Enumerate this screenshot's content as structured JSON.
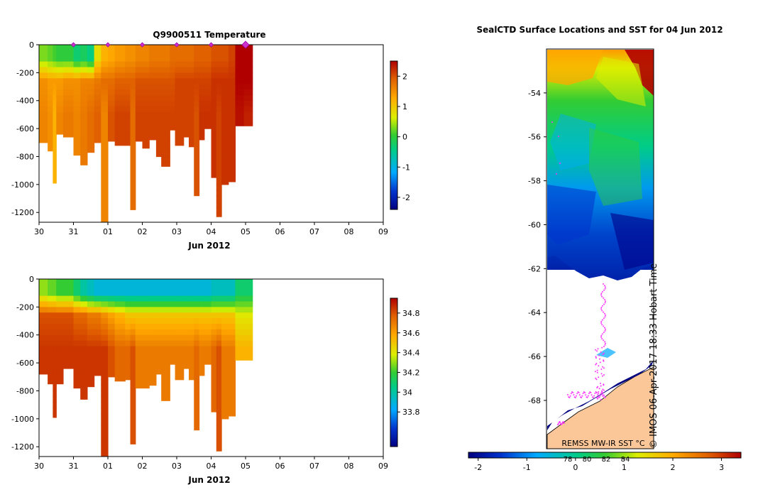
{
  "chart_data": [
    {
      "type": "heatmap",
      "title": "Q9900511  Temperature",
      "xlabel": "Jun 2012",
      "ylabel": "",
      "x_ticks": [
        "30",
        "31",
        "01",
        "02",
        "03",
        "04",
        "05",
        "06",
        "07",
        "08",
        "09"
      ],
      "y_ticks": [
        0,
        -200,
        -400,
        -600,
        -800,
        -1000,
        -1200
      ],
      "ylim": [
        -1270,
        0
      ],
      "colorbar": {
        "min": -2.4,
        "max": 2.5,
        "ticks": [
          "2",
          "1",
          "0",
          "-1",
          "-2"
        ],
        "tick_values": [
          2,
          1,
          0,
          -1,
          -2
        ]
      },
      "profiles": [
        {
          "day": 0.0,
          "max_depth": 700,
          "surface": 0.3,
          "upper": 1.5,
          "deep": 1.6
        },
        {
          "day": 0.25,
          "max_depth": 760,
          "surface": 0.2,
          "upper": 1.4,
          "deep": 1.5
        },
        {
          "day": 0.4,
          "max_depth": 990,
          "surface": 0.1,
          "upper": 1.4,
          "deep": 1.2
        },
        {
          "day": 0.5,
          "max_depth": 640,
          "surface": 0.0,
          "upper": 1.4,
          "deep": 1.6
        },
        {
          "day": 0.7,
          "max_depth": 660,
          "surface": 0.0,
          "upper": 1.5,
          "deep": 1.7
        },
        {
          "day": 1.0,
          "max_depth": 790,
          "surface": -0.3,
          "upper": 1.5,
          "deep": 1.6
        },
        {
          "day": 1.2,
          "max_depth": 860,
          "surface": -0.2,
          "upper": 1.6,
          "deep": 1.7
        },
        {
          "day": 1.4,
          "max_depth": 770,
          "surface": -0.4,
          "upper": 1.6,
          "deep": 1.8
        },
        {
          "day": 1.6,
          "max_depth": 700,
          "surface": 0.8,
          "upper": 1.7,
          "deep": 1.9
        },
        {
          "day": 1.8,
          "max_depth": 1270,
          "surface": 1.2,
          "upper": 1.8,
          "deep": 1.6
        },
        {
          "day": 2.0,
          "max_depth": 690,
          "surface": 1.3,
          "upper": 1.8,
          "deep": 2.0
        },
        {
          "day": 2.2,
          "max_depth": 720,
          "surface": 1.4,
          "upper": 1.9,
          "deep": 2.1
        },
        {
          "day": 2.5,
          "max_depth": 720,
          "surface": 1.5,
          "upper": 1.9,
          "deep": 2.1
        },
        {
          "day": 2.65,
          "max_depth": 1180,
          "surface": 1.5,
          "upper": 1.9,
          "deep": 1.8
        },
        {
          "day": 2.8,
          "max_depth": 690,
          "surface": 1.6,
          "upper": 2.0,
          "deep": 2.1
        },
        {
          "day": 3.0,
          "max_depth": 740,
          "surface": 1.6,
          "upper": 2.0,
          "deep": 2.1
        },
        {
          "day": 3.2,
          "max_depth": 680,
          "surface": 1.7,
          "upper": 2.0,
          "deep": 2.1
        },
        {
          "day": 3.4,
          "max_depth": 800,
          "surface": 1.7,
          "upper": 2.0,
          "deep": 2.1
        },
        {
          "day": 3.55,
          "max_depth": 870,
          "surface": 1.7,
          "upper": 2.0,
          "deep": 2.1
        },
        {
          "day": 3.8,
          "max_depth": 610,
          "surface": 1.8,
          "upper": 2.0,
          "deep": 2.1
        },
        {
          "day": 3.95,
          "max_depth": 720,
          "surface": 1.8,
          "upper": 2.1,
          "deep": 2.1
        },
        {
          "day": 4.2,
          "max_depth": 660,
          "surface": 1.8,
          "upper": 2.1,
          "deep": 2.1
        },
        {
          "day": 4.35,
          "max_depth": 730,
          "surface": 1.8,
          "upper": 2.1,
          "deep": 2.1
        },
        {
          "day": 4.5,
          "max_depth": 1080,
          "surface": 1.9,
          "upper": 2.1,
          "deep": 2.0
        },
        {
          "day": 4.65,
          "max_depth": 680,
          "surface": 1.9,
          "upper": 2.1,
          "deep": 2.2
        },
        {
          "day": 4.8,
          "max_depth": 600,
          "surface": 1.9,
          "upper": 2.1,
          "deep": 2.2
        },
        {
          "day": 5.0,
          "max_depth": 950,
          "surface": 2.0,
          "upper": 2.2,
          "deep": 2.2
        },
        {
          "day": 5.15,
          "max_depth": 1230,
          "surface": 2.0,
          "upper": 2.2,
          "deep": 2.1
        },
        {
          "day": 5.3,
          "max_depth": 1000,
          "surface": 2.0,
          "upper": 2.2,
          "deep": 2.2
        },
        {
          "day": 5.5,
          "max_depth": 980,
          "surface": 2.1,
          "upper": 2.2,
          "deep": 2.2
        },
        {
          "day": 5.7,
          "max_depth": 580,
          "surface": 2.5,
          "upper": 2.5,
          "deep": 2.4
        },
        {
          "day": 5.95,
          "max_depth": 580,
          "surface": 2.5,
          "upper": 2.5,
          "deep": 2.3
        }
      ],
      "last_day": 6.2,
      "surface_markers": [
        1.0,
        2.0,
        3.0,
        4.0,
        5.0,
        6.0
      ]
    },
    {
      "type": "heatmap",
      "title": "",
      "xlabel": "Jun 2012",
      "ylabel": "",
      "x_ticks": [
        "30",
        "31",
        "01",
        "02",
        "03",
        "04",
        "05",
        "06",
        "07",
        "08",
        "09"
      ],
      "y_ticks": [
        0,
        -200,
        -400,
        -600,
        -800,
        -1000,
        -1200
      ],
      "ylim": [
        -1270,
        0
      ],
      "colorbar": {
        "min": 33.45,
        "max": 34.95,
        "ticks": [
          "34.8",
          "34.6",
          "34.4",
          "34.2",
          "34",
          "33.8"
        ],
        "tick_values": [
          34.8,
          34.6,
          34.4,
          34.2,
          34.0,
          33.8
        ]
      },
      "profiles": [
        {
          "day": 0.0,
          "max_depth": 680,
          "surface": 34.3,
          "upper": 34.8,
          "deep": 34.85
        },
        {
          "day": 0.25,
          "max_depth": 750,
          "surface": 34.25,
          "upper": 34.8,
          "deep": 34.85
        },
        {
          "day": 0.4,
          "max_depth": 990,
          "surface": 34.25,
          "upper": 34.8,
          "deep": 34.85
        },
        {
          "day": 0.5,
          "max_depth": 750,
          "surface": 34.2,
          "upper": 34.8,
          "deep": 34.85
        },
        {
          "day": 0.7,
          "max_depth": 640,
          "surface": 34.2,
          "upper": 34.8,
          "deep": 34.85
        },
        {
          "day": 1.0,
          "max_depth": 780,
          "surface": 34.1,
          "upper": 34.75,
          "deep": 34.85
        },
        {
          "day": 1.2,
          "max_depth": 860,
          "surface": 34.0,
          "upper": 34.75,
          "deep": 34.85
        },
        {
          "day": 1.4,
          "max_depth": 770,
          "surface": 33.95,
          "upper": 34.7,
          "deep": 34.85
        },
        {
          "day": 1.6,
          "max_depth": 690,
          "surface": 33.9,
          "upper": 34.7,
          "deep": 34.85
        },
        {
          "day": 1.8,
          "max_depth": 1270,
          "surface": 33.9,
          "upper": 34.65,
          "deep": 34.85
        },
        {
          "day": 2.0,
          "max_depth": 700,
          "surface": 33.9,
          "upper": 34.6,
          "deep": 34.8
        },
        {
          "day": 2.2,
          "max_depth": 730,
          "surface": 33.9,
          "upper": 34.55,
          "deep": 34.75
        },
        {
          "day": 2.5,
          "max_depth": 720,
          "surface": 33.9,
          "upper": 34.5,
          "deep": 34.75
        },
        {
          "day": 2.65,
          "max_depth": 1180,
          "surface": 33.9,
          "upper": 34.5,
          "deep": 34.8
        },
        {
          "day": 2.8,
          "max_depth": 780,
          "surface": 33.9,
          "upper": 34.5,
          "deep": 34.7
        },
        {
          "day": 3.0,
          "max_depth": 780,
          "surface": 33.9,
          "upper": 34.5,
          "deep": 34.7
        },
        {
          "day": 3.2,
          "max_depth": 760,
          "surface": 33.9,
          "upper": 34.5,
          "deep": 34.7
        },
        {
          "day": 3.4,
          "max_depth": 680,
          "surface": 33.9,
          "upper": 34.5,
          "deep": 34.7
        },
        {
          "day": 3.55,
          "max_depth": 870,
          "surface": 33.9,
          "upper": 34.5,
          "deep": 34.7
        },
        {
          "day": 3.8,
          "max_depth": 610,
          "surface": 33.9,
          "upper": 34.5,
          "deep": 34.7
        },
        {
          "day": 3.95,
          "max_depth": 720,
          "surface": 33.9,
          "upper": 34.5,
          "deep": 34.7
        },
        {
          "day": 4.2,
          "max_depth": 640,
          "surface": 33.9,
          "upper": 34.5,
          "deep": 34.7
        },
        {
          "day": 4.35,
          "max_depth": 720,
          "surface": 33.9,
          "upper": 34.5,
          "deep": 34.7
        },
        {
          "day": 4.5,
          "max_depth": 1080,
          "surface": 33.9,
          "upper": 34.5,
          "deep": 34.75
        },
        {
          "day": 4.65,
          "max_depth": 690,
          "surface": 33.9,
          "upper": 34.5,
          "deep": 34.7
        },
        {
          "day": 4.8,
          "max_depth": 610,
          "surface": 33.9,
          "upper": 34.5,
          "deep": 34.7
        },
        {
          "day": 5.0,
          "max_depth": 950,
          "surface": 33.95,
          "upper": 34.5,
          "deep": 34.75
        },
        {
          "day": 5.15,
          "max_depth": 1230,
          "surface": 33.95,
          "upper": 34.5,
          "deep": 34.8
        },
        {
          "day": 5.3,
          "max_depth": 1000,
          "surface": 33.95,
          "upper": 34.5,
          "deep": 34.7
        },
        {
          "day": 5.5,
          "max_depth": 980,
          "surface": 33.95,
          "upper": 34.5,
          "deep": 34.7
        },
        {
          "day": 5.7,
          "max_depth": 580,
          "surface": 34.1,
          "upper": 34.4,
          "deep": 34.55
        },
        {
          "day": 5.95,
          "max_depth": 580,
          "surface": 34.1,
          "upper": 34.4,
          "deep": 34.55
        }
      ],
      "last_day": 6.2
    },
    {
      "type": "heatmap",
      "title": "SealCTD Surface Locations and SST for 04 Jun 2012",
      "y_ticks": [
        "-54",
        "-56",
        "-58",
        "-60",
        "-62",
        "-64",
        "-66",
        "-68"
      ],
      "y_tick_values": [
        -54,
        -56,
        -58,
        -60,
        -62,
        -64,
        -66,
        -68
      ],
      "ylim": [
        -70.2,
        -52.0
      ],
      "colorbar": {
        "label": "REMSS MW-IR SST °C",
        "min": -2.2,
        "max": 3.4,
        "ticks": [
          "-2",
          "-1",
          "0",
          "1",
          "2",
          "3"
        ],
        "tick_values": [
          -2,
          -1,
          0,
          1,
          2,
          3
        ],
        "secondary_ticks": [
          "78",
          "80",
          "82",
          "84"
        ]
      },
      "annotation": "© IMOS 06-Apr-2017 18:33 Hobart Time"
    }
  ]
}
